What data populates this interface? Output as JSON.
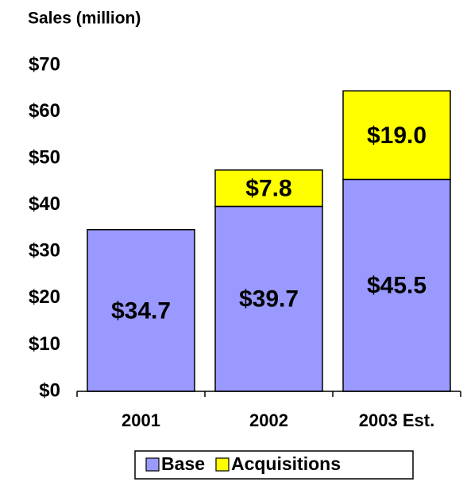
{
  "chart_data": {
    "type": "stacked_bar",
    "title": "Sales (million)",
    "categories": [
      "2001",
      "2002",
      "2003 Est."
    ],
    "series": [
      {
        "name": "Base",
        "color": "#9999ff",
        "values": [
          34.7,
          39.7,
          45.5
        ],
        "value_labels": [
          "$34.7",
          "$39.7",
          "$45.5"
        ]
      },
      {
        "name": "Acquisitions",
        "color": "#ffff00",
        "values": [
          null,
          7.8,
          19.0
        ],
        "value_labels": [
          null,
          "$7.8",
          "$19.0"
        ]
      }
    ],
    "ylim": [
      0,
      70
    ],
    "yticks": [
      {
        "value": 0,
        "label": "$0"
      },
      {
        "value": 10,
        "label": "$10"
      },
      {
        "value": 20,
        "label": "$20"
      },
      {
        "value": 30,
        "label": "$30"
      },
      {
        "value": 40,
        "label": "$40"
      },
      {
        "value": 50,
        "label": "$50"
      },
      {
        "value": 60,
        "label": "$60"
      },
      {
        "value": 70,
        "label": "$70"
      }
    ],
    "legend": "bottom"
  }
}
